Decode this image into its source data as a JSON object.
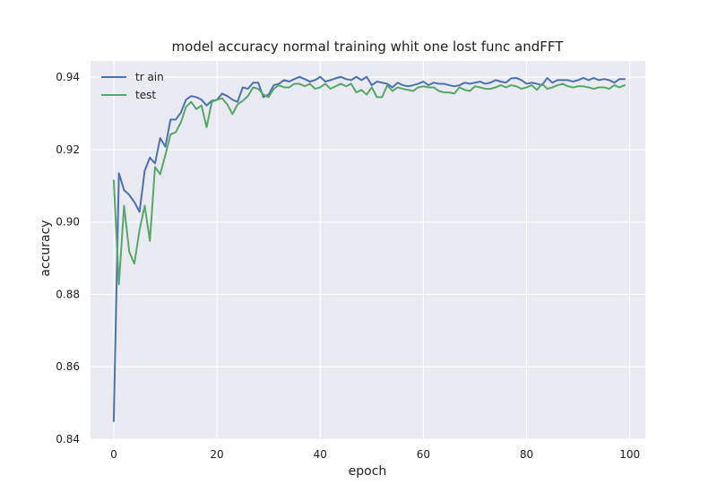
{
  "chart_data": {
    "type": "line",
    "title": "model accuracy normal training whit one lost func andFFT",
    "xlabel": "epoch",
    "ylabel": "accuracy",
    "xlim": [
      -4.5,
      103
    ],
    "ylim": [
      0.84,
      0.9445
    ],
    "xticks": [
      0,
      20,
      40,
      60,
      80,
      100
    ],
    "yticks": [
      0.84,
      0.86,
      0.88,
      0.9,
      0.92,
      0.94
    ],
    "xtick_labels": [
      "0",
      "20",
      "40",
      "60",
      "80",
      "100"
    ],
    "ytick_labels": [
      "0.84",
      "0.86",
      "0.88",
      "0.90",
      "0.92",
      "0.94"
    ],
    "grid": true,
    "legend_position": "top-left",
    "x": [
      0,
      1,
      2,
      3,
      4,
      5,
      6,
      7,
      8,
      9,
      10,
      11,
      12,
      13,
      14,
      15,
      16,
      17,
      18,
      19,
      20,
      21,
      22,
      23,
      24,
      25,
      26,
      27,
      28,
      29,
      30,
      31,
      32,
      33,
      34,
      35,
      36,
      37,
      38,
      39,
      40,
      41,
      42,
      43,
      44,
      45,
      46,
      47,
      48,
      49,
      50,
      51,
      52,
      53,
      54,
      55,
      56,
      57,
      58,
      59,
      60,
      61,
      62,
      63,
      64,
      65,
      66,
      67,
      68,
      69,
      70,
      71,
      72,
      73,
      74,
      75,
      76,
      77,
      78,
      79,
      80,
      81,
      82,
      83,
      84,
      85,
      86,
      87,
      88,
      89,
      90,
      91,
      92,
      93,
      94,
      95,
      96,
      97,
      98,
      99
    ],
    "series": [
      {
        "name": "tr ain",
        "color": "#4c72b0",
        "values": [
          0.845,
          0.9135,
          0.9088,
          0.9075,
          0.9055,
          0.9028,
          0.9142,
          0.9178,
          0.9162,
          0.9232,
          0.9208,
          0.9283,
          0.9283,
          0.9302,
          0.9338,
          0.9348,
          0.9345,
          0.9338,
          0.9322,
          0.9335,
          0.9338,
          0.9355,
          0.9348,
          0.9338,
          0.9332,
          0.9372,
          0.9368,
          0.9385,
          0.9385,
          0.9345,
          0.9352,
          0.9378,
          0.9382,
          0.9392,
          0.9388,
          0.9395,
          0.9401,
          0.9395,
          0.9388,
          0.9392,
          0.9401,
          0.9388,
          0.9392,
          0.9397,
          0.9401,
          0.9395,
          0.9392,
          0.9401,
          0.9392,
          0.9401,
          0.9378,
          0.9388,
          0.9385,
          0.9382,
          0.9372,
          0.9385,
          0.9378,
          0.9375,
          0.9378,
          0.9382,
          0.9388,
          0.9378,
          0.9385,
          0.9382,
          0.9382,
          0.9378,
          0.9375,
          0.9378,
          0.9385,
          0.9382,
          0.9385,
          0.9388,
          0.9382,
          0.9385,
          0.9392,
          0.9388,
          0.9385,
          0.9397,
          0.9398,
          0.9392,
          0.9382,
          0.9385,
          0.9382,
          0.9378,
          0.9398,
          0.9385,
          0.9392,
          0.9392,
          0.9392,
          0.9388,
          0.9392,
          0.9398,
          0.9392,
          0.9398,
          0.9392,
          0.9395,
          0.9392,
          0.9385,
          0.9395,
          0.9395
        ]
      },
      {
        "name": "test",
        "color": "#55a868",
        "values": [
          0.9115,
          0.8828,
          0.9045,
          0.8918,
          0.8885,
          0.8978,
          0.9045,
          0.8948,
          0.9152,
          0.9132,
          0.9185,
          0.9242,
          0.9248,
          0.9275,
          0.9318,
          0.9332,
          0.9312,
          0.9322,
          0.9262,
          0.9332,
          0.9338,
          0.9342,
          0.9325,
          0.9298,
          0.9325,
          0.9335,
          0.9348,
          0.9372,
          0.9368,
          0.9352,
          0.9345,
          0.9368,
          0.9378,
          0.9372,
          0.9372,
          0.9382,
          0.9382,
          0.9375,
          0.9382,
          0.9368,
          0.9372,
          0.9382,
          0.9368,
          0.9375,
          0.9382,
          0.9375,
          0.9382,
          0.9358,
          0.9365,
          0.9352,
          0.9372,
          0.9345,
          0.9345,
          0.9378,
          0.9362,
          0.9372,
          0.9368,
          0.9365,
          0.9362,
          0.9372,
          0.9375,
          0.9372,
          0.9372,
          0.9362,
          0.9358,
          0.9358,
          0.9355,
          0.9372,
          0.9365,
          0.9362,
          0.9375,
          0.9372,
          0.9368,
          0.9368,
          0.9372,
          0.9378,
          0.9372,
          0.9378,
          0.9375,
          0.9368,
          0.9372,
          0.9378,
          0.9365,
          0.9382,
          0.9368,
          0.9372,
          0.9378,
          0.9382,
          0.9375,
          0.9372,
          0.9375,
          0.9375,
          0.9372,
          0.9368,
          0.9372,
          0.9372,
          0.9368,
          0.9378,
          0.9372,
          0.9378
        ]
      }
    ]
  }
}
